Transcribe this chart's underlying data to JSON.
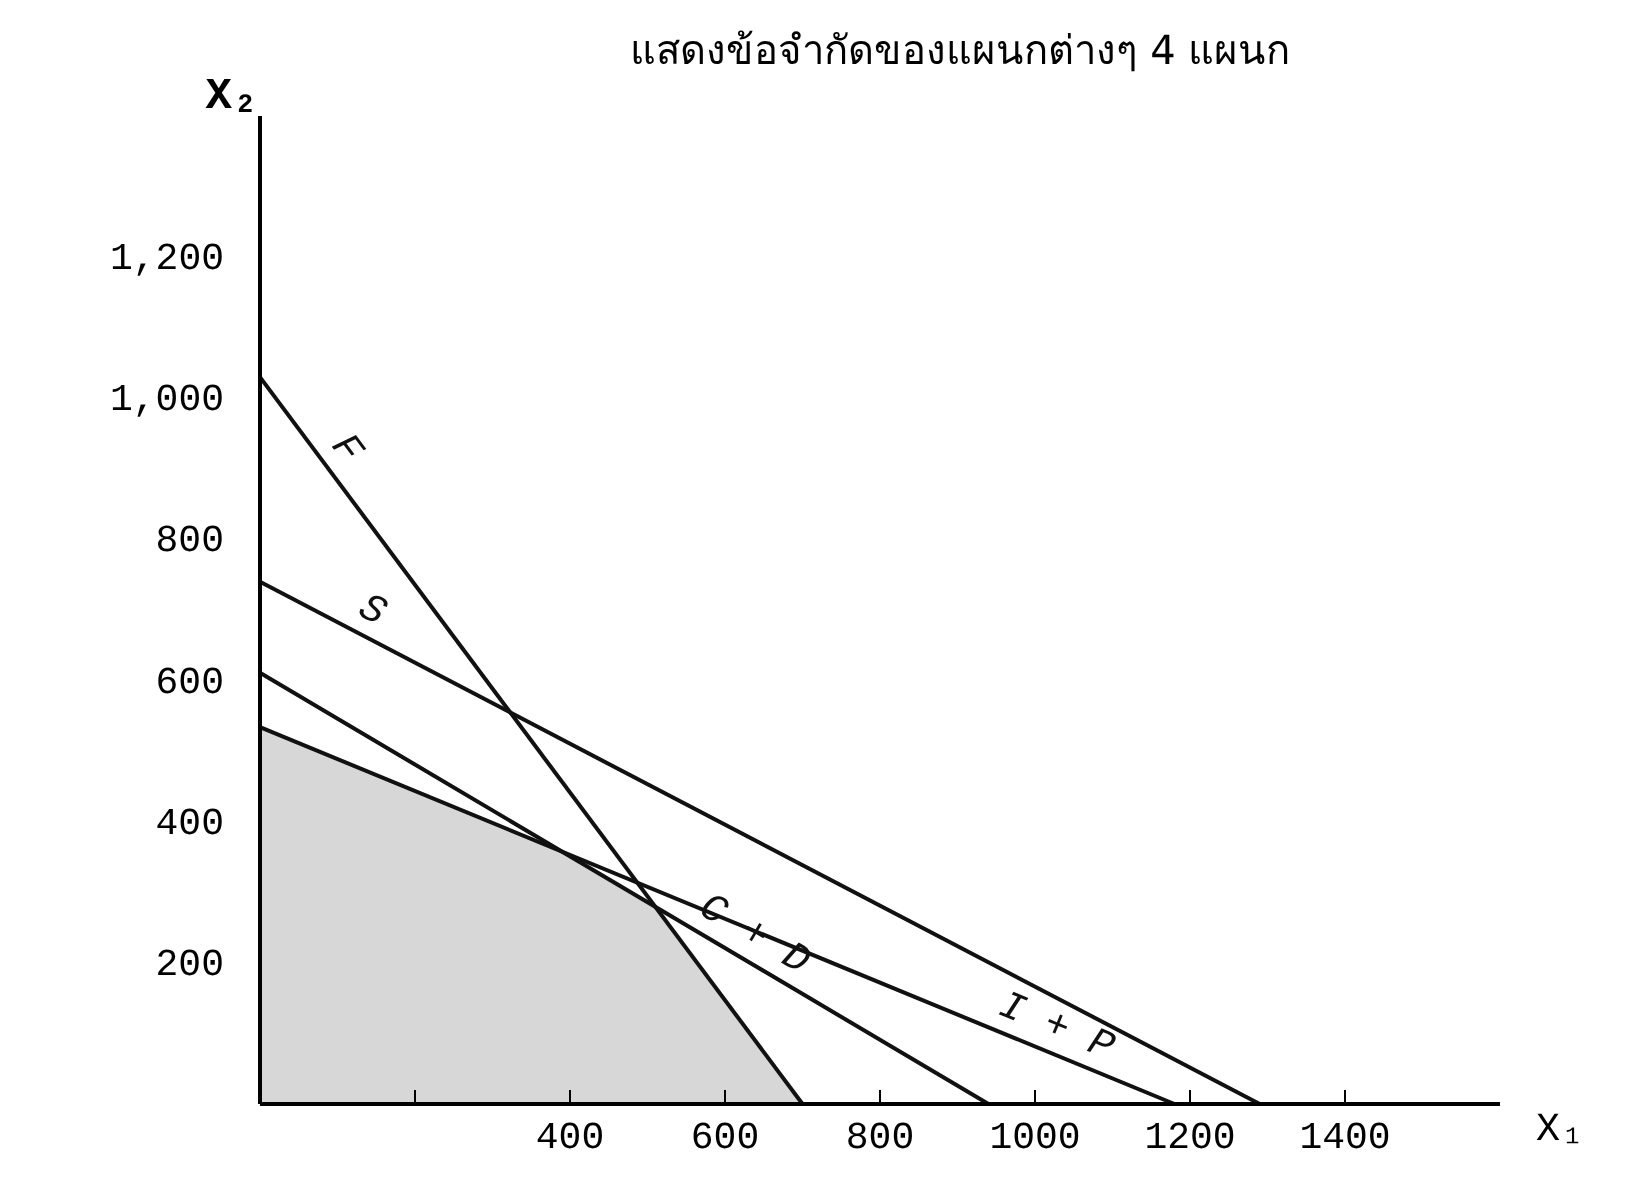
{
  "chart_data": {
    "type": "line",
    "title": "แสดงข้อจำกัดของแผนกต่างๆ 4 แผนก",
    "xlabel": "X₁",
    "ylabel": "X₂",
    "xlim": [
      0,
      1600
    ],
    "xticks": [
      {
        "value": 200,
        "label": null
      },
      400,
      600,
      800,
      1000,
      1200,
      1400
    ],
    "ylim": [
      0,
      1400
    ],
    "yticks": [
      200,
      400,
      600,
      800,
      {
        "value": 1000,
        "label": "1,000"
      },
      {
        "value": 1200,
        "label": "1,200"
      }
    ],
    "grid": false,
    "marker": "none",
    "line_style": "solid",
    "series": [
      {
        "type": "area",
        "color": "#bdbdbd",
        "x": [
          0,
          390,
          510,
          700
        ],
        "values": [
          534,
          357,
          280,
          0
        ]
      },
      {
        "name": "F",
        "color": "#111111",
        "x": [
          0,
          700
        ],
        "values": [
          1030,
          0
        ]
      },
      {
        "name": "S",
        "color": "#111111",
        "x": [
          0,
          1290
        ],
        "values": [
          740,
          0
        ]
      },
      {
        "name": "C + D",
        "color": "#111111",
        "x": [
          0,
          940
        ],
        "values": [
          611,
          0
        ]
      },
      {
        "name": "I + P",
        "color": "#111111",
        "x": [
          0,
          1180
        ],
        "values": [
          534,
          0
        ]
      }
    ]
  }
}
